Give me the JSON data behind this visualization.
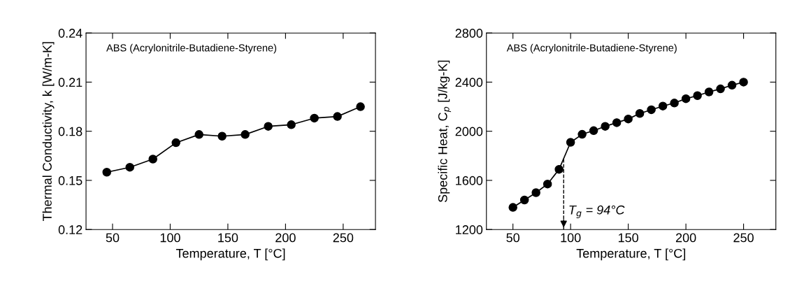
{
  "chart_data": [
    {
      "type": "line",
      "xlabel": "Temperature, T [°C]",
      "ylabel": "Thermal Conductivity, k [W/m-K]",
      "annotations": [
        "ABS (Acrylonitrile-Butadiene-Styrene)"
      ],
      "x": [
        45,
        65,
        85,
        105,
        125,
        145,
        165,
        185,
        205,
        225,
        245,
        265
      ],
      "series": [
        {
          "color": "#000000",
          "values": [
            0.155,
            0.158,
            0.163,
            0.173,
            0.178,
            0.177,
            0.178,
            0.183,
            0.184,
            0.188,
            0.189,
            0.195
          ]
        }
      ],
      "xlim": [
        27,
        278
      ],
      "xticks": [
        50,
        100,
        150,
        200,
        250
      ],
      "ylim": [
        0.12,
        0.24
      ],
      "yticks": [
        0.12,
        0.15,
        0.18,
        0.21,
        0.24
      ],
      "grid": false,
      "legend": false,
      "marker": "circle",
      "line_style": "solid"
    },
    {
      "type": "line",
      "xlabel": "Temperature, T [°C]",
      "ylabel": "Specific Heat, C$_{p}$ [J/kg-K]",
      "annotations": [
        "ABS (Acrylonitrile-Butadiene-Styrene)"
      ],
      "x": [
        50,
        60,
        70,
        80,
        90,
        100,
        110,
        120,
        130,
        140,
        150,
        160,
        170,
        180,
        190,
        200,
        210,
        220,
        230,
        240,
        250
      ],
      "series": [
        {
          "color": "#000000",
          "values": [
            1380,
            1440,
            1500,
            1570,
            1690,
            1910,
            1975,
            2005,
            2040,
            2070,
            2100,
            2145,
            2175,
            2205,
            2230,
            2265,
            2290,
            2320,
            2345,
            2375,
            2400
          ]
        }
      ],
      "ref_lines": [
        {
          "axis": "x",
          "value": 94,
          "label": "T$_{g}$ = 94°C",
          "line_style": "dashed",
          "color": "#000000"
        }
      ],
      "xlim": [
        27,
        278
      ],
      "xticks": [
        50,
        100,
        150,
        200,
        250
      ],
      "ylim": [
        1200,
        2800
      ],
      "yticks": [
        1200,
        1600,
        2000,
        2400,
        2800
      ],
      "grid": false,
      "legend": false,
      "marker": "circle",
      "line_style": "solid"
    }
  ]
}
